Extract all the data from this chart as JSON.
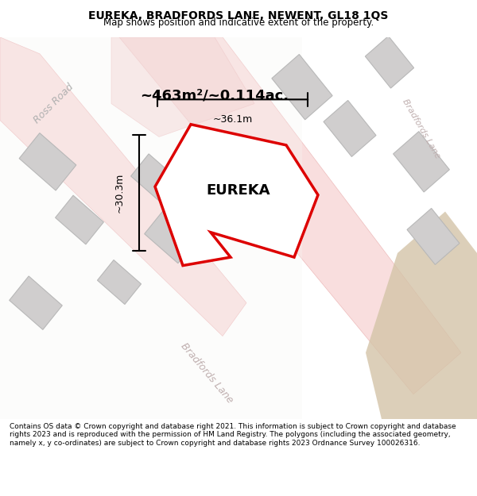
{
  "title": "EUREKA, BRADFORDS LANE, NEWENT, GL18 1QS",
  "subtitle": "Map shows position and indicative extent of the property.",
  "footer": "Contains OS data © Crown copyright and database right 2021. This information is subject to Crown copyright and database rights 2023 and is reproduced with the permission of HM Land Registry. The polygons (including the associated geometry, namely x, y co-ordinates) are subject to Crown copyright and database rights 2023 Ordnance Survey 100026316.",
  "area_label": "~463m²/~0.114ac.",
  "property_label": "EUREKA",
  "dim_width": "~36.1m",
  "dim_height": "~30.3m",
  "bg_map_color": "#f5f0eb",
  "road_color": "#f5c4c4",
  "building_color": "#d0cece",
  "outline_color": "#c8c8c8",
  "property_fill": "#ffffff",
  "property_edge": "#dd0000",
  "road_label_color": "#aaaaaa",
  "map_bg": "#f0ede8"
}
